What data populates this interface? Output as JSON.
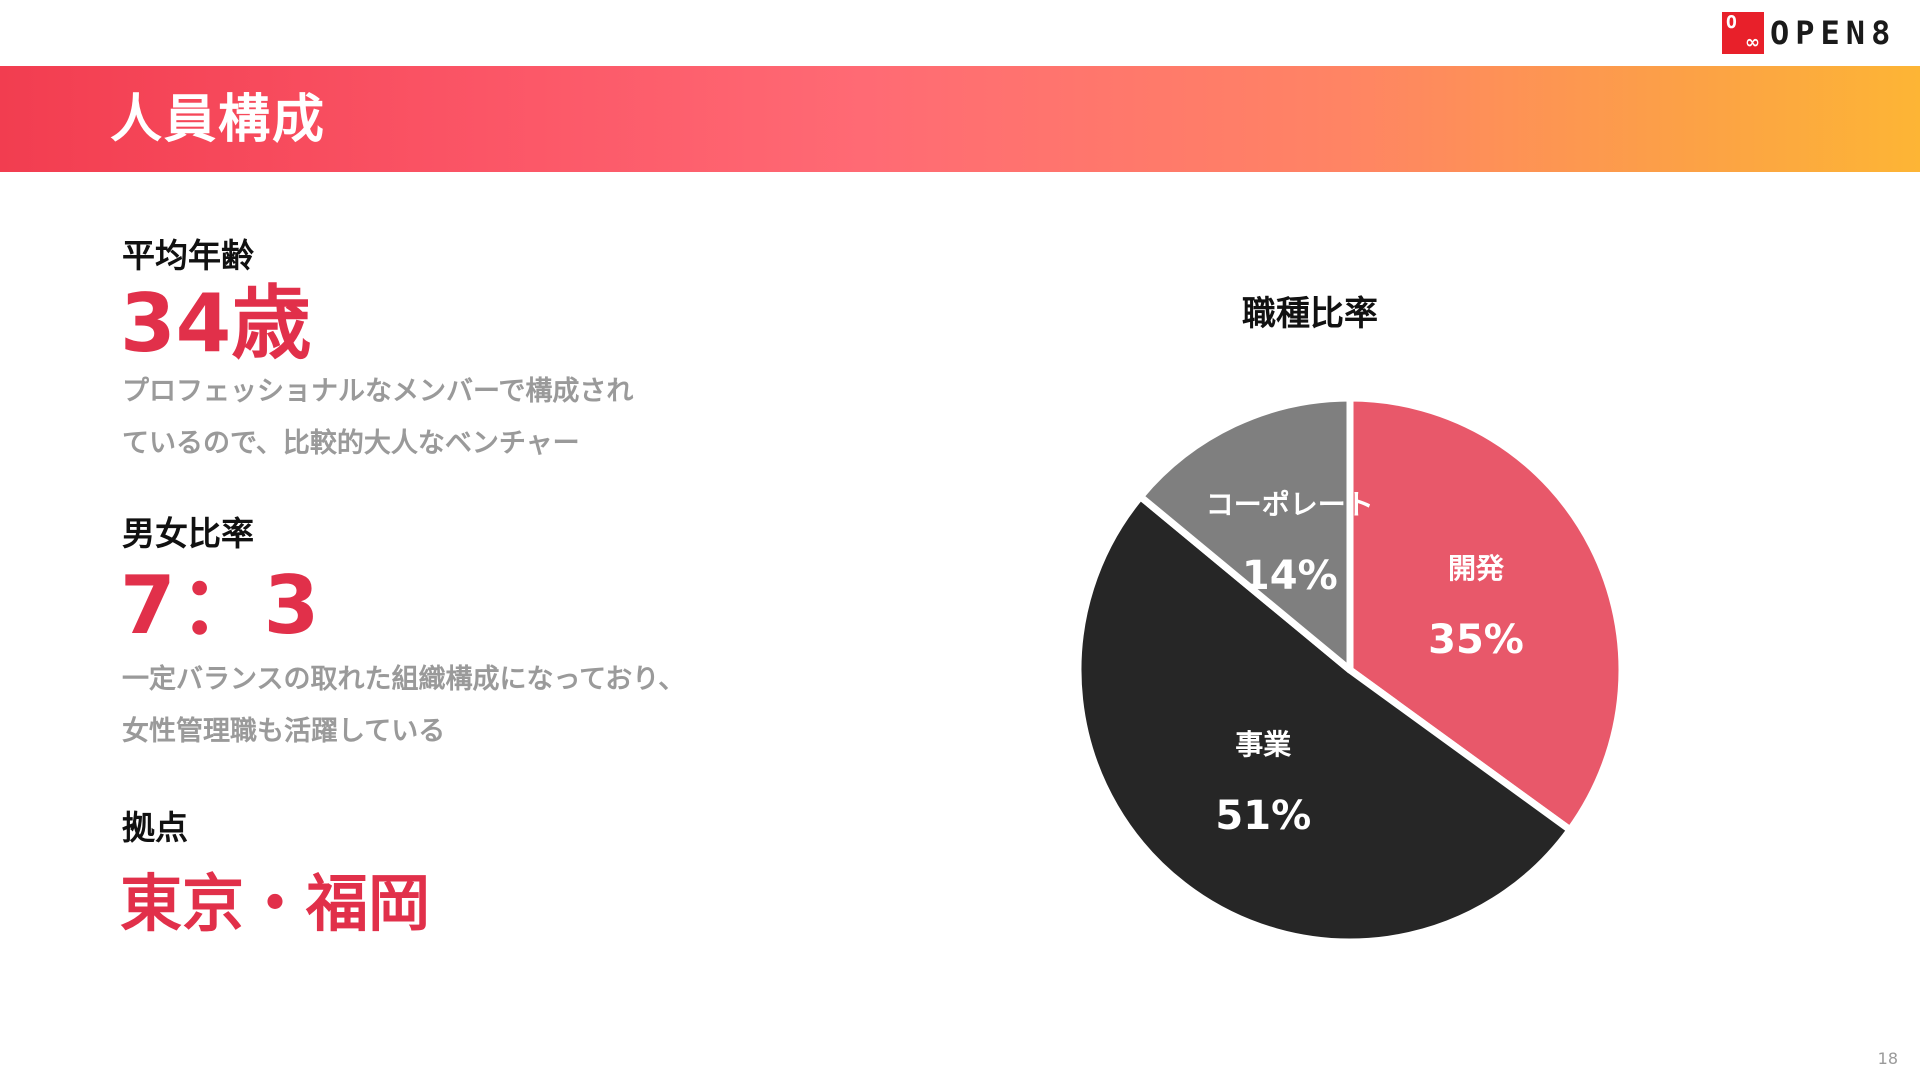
{
  "logo": {
    "mark_top": "O",
    "mark_bottom": "∞",
    "text": "OPEN8"
  },
  "header": {
    "title": "人員構成"
  },
  "stats": {
    "age": {
      "label": "平均年齢",
      "value": "34歳",
      "desc": [
        "プロフェッショナルなメンバーで構成され",
        "ているので、比較的大人なベンチャー"
      ]
    },
    "gender": {
      "label": "男女比率",
      "value": "7：3",
      "desc": [
        "一定バランスの取れた組織構成になっており、",
        "女性管理職も活躍している"
      ]
    },
    "base": {
      "label": "拠点",
      "value": "東京・福岡"
    }
  },
  "chart_data": {
    "type": "pie",
    "title": "職種比率",
    "start_angle_deg": 0,
    "slices": [
      {
        "label": "開発",
        "value": 35,
        "display": "35%",
        "color": "#e8586a",
        "text_color": "#ffffff"
      },
      {
        "label": "事業",
        "value": 51,
        "display": "51%",
        "color": "#262626",
        "text_color": "#ffffff"
      },
      {
        "label": "コーポレート",
        "value": 14,
        "display": "14%",
        "color": "#7f7f7f",
        "text_color": "#ffffff"
      }
    ]
  },
  "page_number": "18",
  "colors": {
    "accent": "#e1304a",
    "muted_text": "#9a9a9a"
  }
}
